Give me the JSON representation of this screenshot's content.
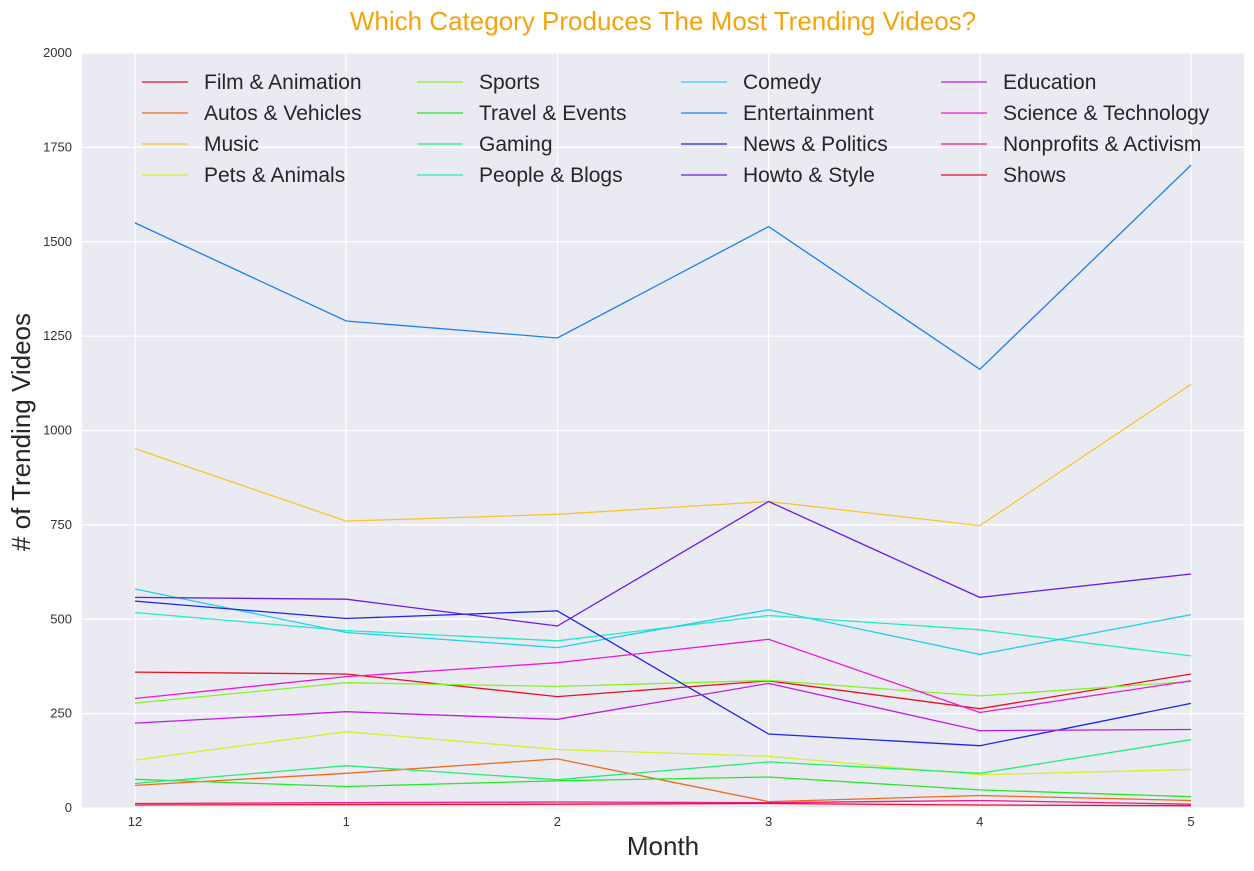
{
  "chart_data": {
    "type": "line",
    "title": "Which Category Produces The Most Trending Videos?",
    "title_color": "#f5a30a",
    "xlabel": "Month",
    "ylabel": "# of Trending Videos",
    "categories": [
      "12",
      "1",
      "2",
      "3",
      "4",
      "5"
    ],
    "ylim": [
      0,
      2000
    ],
    "yticks": [
      0,
      250,
      500,
      750,
      1000,
      1250,
      1500,
      1750,
      2000
    ],
    "grid": true,
    "legend_position": "top",
    "legend_columns": 4,
    "background_color": "#eaeaf2",
    "series": [
      {
        "name": "Film & Animation",
        "color": "#e8121f",
        "values": [
          360,
          355,
          295,
          337,
          263,
          355
        ]
      },
      {
        "name": "Autos & Vehicles",
        "color": "#f06a1c",
        "values": [
          60,
          92,
          130,
          17,
          33,
          20
        ]
      },
      {
        "name": "Music",
        "color": "#f7c62d",
        "values": [
          952,
          760,
          778,
          812,
          748,
          1122
        ]
      },
      {
        "name": "Pets & Animals",
        "color": "#d6ef2a",
        "values": [
          127,
          202,
          155,
          137,
          88,
          102
        ]
      },
      {
        "name": "Sports",
        "color": "#85f22a",
        "values": [
          278,
          332,
          322,
          338,
          297,
          335
        ]
      },
      {
        "name": "Travel & Events",
        "color": "#28e82a",
        "values": [
          76,
          57,
          72,
          82,
          48,
          30
        ]
      },
      {
        "name": "Gaming",
        "color": "#22ee78",
        "values": [
          65,
          112,
          75,
          122,
          92,
          181
        ]
      },
      {
        "name": "People & Blogs",
        "color": "#22ecc4",
        "values": [
          518,
          470,
          443,
          510,
          472,
          403
        ]
      },
      {
        "name": "Comedy",
        "color": "#23d0ee",
        "values": [
          580,
          465,
          425,
          525,
          407,
          512
        ]
      },
      {
        "name": "Entertainment",
        "color": "#1a80ee",
        "values": [
          1550,
          1290,
          1245,
          1540,
          1162,
          1703
        ]
      },
      {
        "name": "News & Politics",
        "color": "#1a26e8",
        "values": [
          548,
          502,
          522,
          196,
          165,
          277
        ]
      },
      {
        "name": "Howto & Style",
        "color": "#6a1ae8",
        "values": [
          558,
          553,
          482,
          812,
          558,
          620
        ]
      },
      {
        "name": "Education",
        "color": "#c21ae8",
        "values": [
          225,
          255,
          235,
          330,
          205,
          208
        ]
      },
      {
        "name": "Science & Technology",
        "color": "#ec1ad6",
        "values": [
          290,
          348,
          385,
          447,
          253,
          337
        ]
      },
      {
        "name": "Nonprofits & Activism",
        "color": "#ec1a8a",
        "values": [
          12,
          14,
          16,
          14,
          20,
          10
        ]
      },
      {
        "name": "Shows",
        "color": "#e8122e",
        "values": [
          8,
          9,
          10,
          12,
          8,
          6
        ]
      }
    ]
  }
}
